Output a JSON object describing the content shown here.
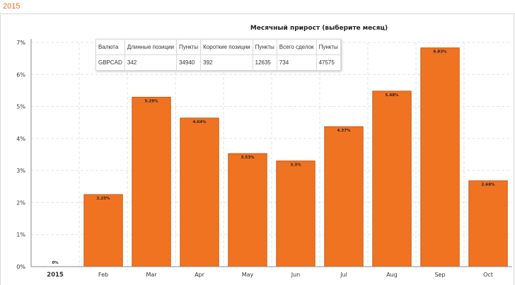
{
  "header": {
    "year_tab": "2015"
  },
  "stats_table": {
    "headers": [
      "Валюта",
      "Длинные позиции",
      "Пункты",
      "Короткие позиции",
      "Пункты",
      "Всего сделок",
      "Пункты"
    ],
    "values": [
      "GBPCAD",
      "342",
      "34940",
      "392",
      "12635",
      "734",
      "47575"
    ]
  },
  "colors": {
    "bar": "#f07322",
    "bar_border": "#c85a16",
    "grid": "#e3e3e3",
    "axis": "#888888"
  },
  "chart_data": {
    "type": "bar",
    "title": "Месячный прирост (выберите месяц)",
    "categories": [
      "2015",
      "Feb",
      "Mar",
      "Apr",
      "May",
      "Jun",
      "Jul",
      "Aug",
      "Sep",
      "Oct"
    ],
    "values": [
      0,
      2.25,
      5.29,
      4.64,
      3.53,
      3.3,
      4.37,
      5.48,
      6.83,
      2.68
    ],
    "data_labels": [
      "0%",
      "2.25%",
      "5.29%",
      "4.64%",
      "3.53%",
      "3.3%",
      "4.37%",
      "5.48%",
      "6.83%",
      "2.68%"
    ],
    "y_ticks": [
      "0%",
      "1%",
      "2%",
      "3%",
      "4%",
      "5%",
      "6%",
      "7%"
    ],
    "ylim": [
      0,
      7
    ],
    "xlabel": "",
    "ylabel": "",
    "grid": true,
    "legend": "none"
  }
}
